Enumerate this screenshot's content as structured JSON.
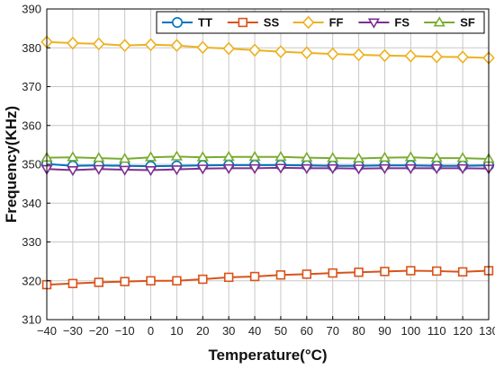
{
  "chart_data": {
    "type": "line",
    "xlabel": "Temperature(°C)",
    "ylabel": "Frequency(KHz)",
    "xlim": [
      -40,
      130
    ],
    "ylim": [
      310,
      390
    ],
    "x_ticks": [
      -40,
      -30,
      -20,
      -10,
      0,
      10,
      20,
      30,
      40,
      50,
      60,
      70,
      80,
      90,
      100,
      110,
      120,
      130
    ],
    "y_ticks": [
      310,
      320,
      330,
      340,
      350,
      360,
      370,
      380,
      390
    ],
    "grid": true,
    "legend_position": "top",
    "x": [
      -40,
      -30,
      -20,
      -10,
      0,
      10,
      20,
      30,
      40,
      50,
      60,
      70,
      80,
      90,
      100,
      110,
      120,
      130
    ],
    "series": [
      {
        "name": "TT",
        "color": "#0072BD",
        "marker": "circle",
        "values": [
          350.1,
          349.6,
          349.7,
          349.6,
          349.5,
          349.6,
          349.7,
          349.8,
          349.8,
          349.8,
          349.7,
          349.6,
          349.6,
          349.7,
          349.7,
          349.6,
          349.6,
          349.7
        ]
      },
      {
        "name": "SS",
        "color": "#D95319",
        "marker": "square",
        "values": [
          319.0,
          319.3,
          319.6,
          319.8,
          320.0,
          320.0,
          320.4,
          320.9,
          321.1,
          321.5,
          321.7,
          322.0,
          322.2,
          322.4,
          322.6,
          322.5,
          322.3,
          322.6
        ]
      },
      {
        "name": "FF",
        "color": "#EDB120",
        "marker": "diamond",
        "values": [
          381.5,
          381.2,
          381.0,
          380.6,
          380.8,
          380.6,
          380.1,
          379.8,
          379.4,
          379.0,
          378.7,
          378.4,
          378.2,
          378.0,
          377.9,
          377.7,
          377.6,
          377.4
        ]
      },
      {
        "name": "FS",
        "color": "#7E2F8E",
        "marker": "triangle-down",
        "values": [
          348.8,
          348.5,
          348.8,
          348.6,
          348.5,
          348.7,
          348.9,
          349.0,
          349.0,
          349.1,
          349.0,
          349.0,
          348.9,
          349.0,
          349.0,
          349.0,
          349.0,
          348.9
        ]
      },
      {
        "name": "SF",
        "color": "#77AC30",
        "marker": "triangle-up",
        "values": [
          351.7,
          351.8,
          351.6,
          351.4,
          351.8,
          352.0,
          351.8,
          351.9,
          351.9,
          351.9,
          351.7,
          351.6,
          351.5,
          351.7,
          351.8,
          351.6,
          351.6,
          351.4
        ]
      }
    ]
  }
}
